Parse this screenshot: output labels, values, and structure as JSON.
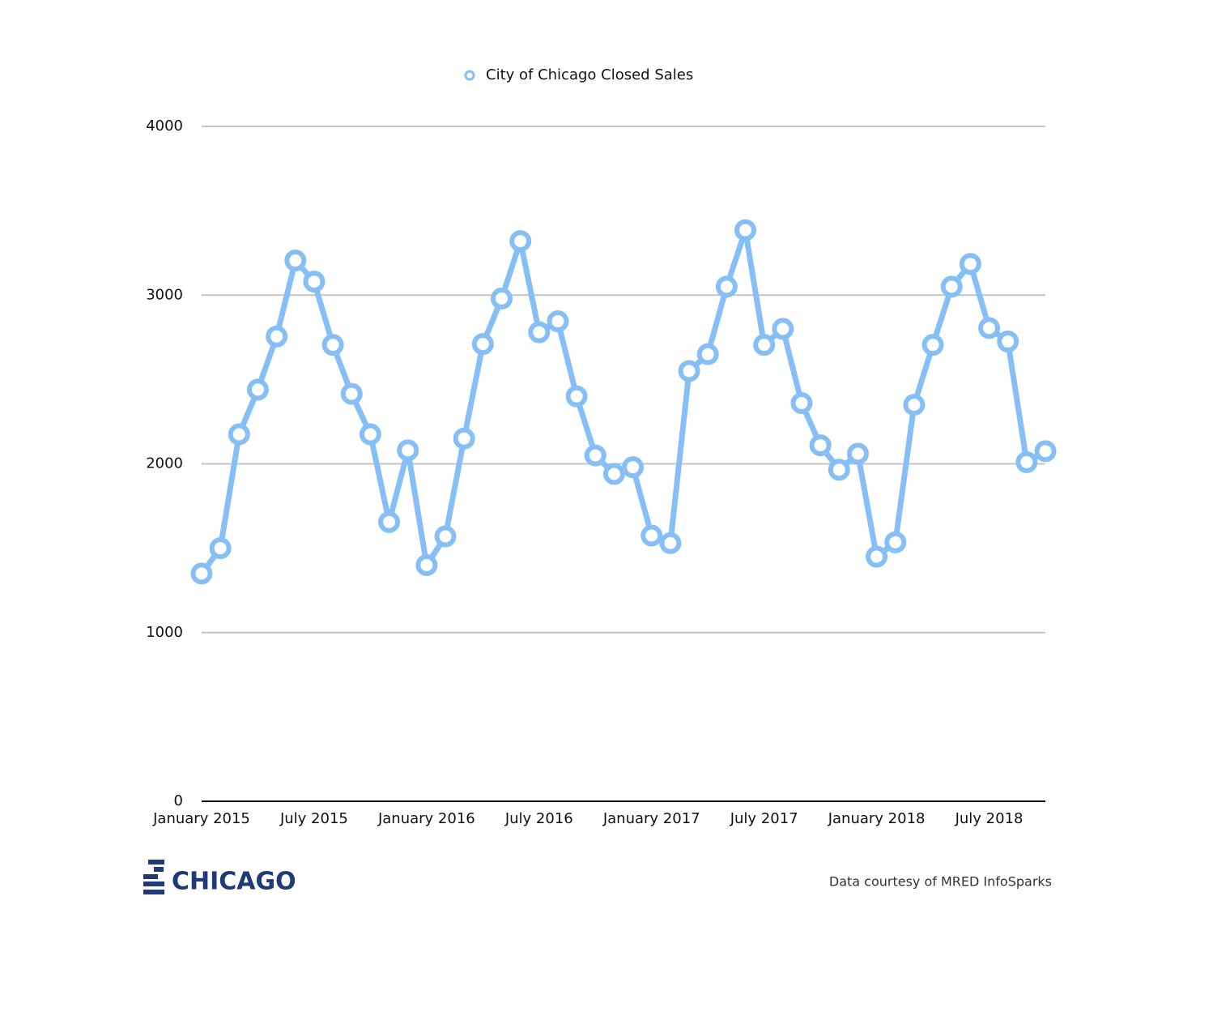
{
  "chart_data": {
    "type": "line",
    "categories": [
      "January 2015",
      null,
      null,
      null,
      null,
      null,
      "July 2015",
      null,
      null,
      null,
      null,
      null,
      "January 2016",
      null,
      null,
      null,
      null,
      null,
      "July 2016",
      null,
      null,
      null,
      null,
      null,
      "January 2017",
      null,
      null,
      null,
      null,
      null,
      "July 2017",
      null,
      null,
      null,
      null,
      null,
      "January 2018",
      null,
      null,
      null,
      null,
      null,
      "July 2018",
      null,
      null,
      null
    ],
    "series": [
      {
        "name": "City of Chicago Closed Sales",
        "color": "#86bff5",
        "values": [
          1350,
          1500,
          2175,
          2440,
          2755,
          3205,
          3080,
          2705,
          2415,
          2175,
          1655,
          2080,
          1400,
          1570,
          2150,
          2710,
          2980,
          3320,
          2780,
          2845,
          2400,
          2050,
          1940,
          1980,
          1575,
          1530,
          2550,
          2650,
          3050,
          3385,
          2705,
          2800,
          2360,
          2110,
          1965,
          2060,
          1450,
          1535,
          2350,
          2705,
          3050,
          3185,
          2805,
          2725,
          2010,
          2075
        ]
      }
    ],
    "ylim": [
      0,
      4000
    ],
    "yticks": [
      0,
      1000,
      2000,
      3000,
      4000
    ],
    "grid": true,
    "legend": "top",
    "source": "Data courtesy of MRED InfoSparks",
    "logo": "CHICAGO"
  }
}
